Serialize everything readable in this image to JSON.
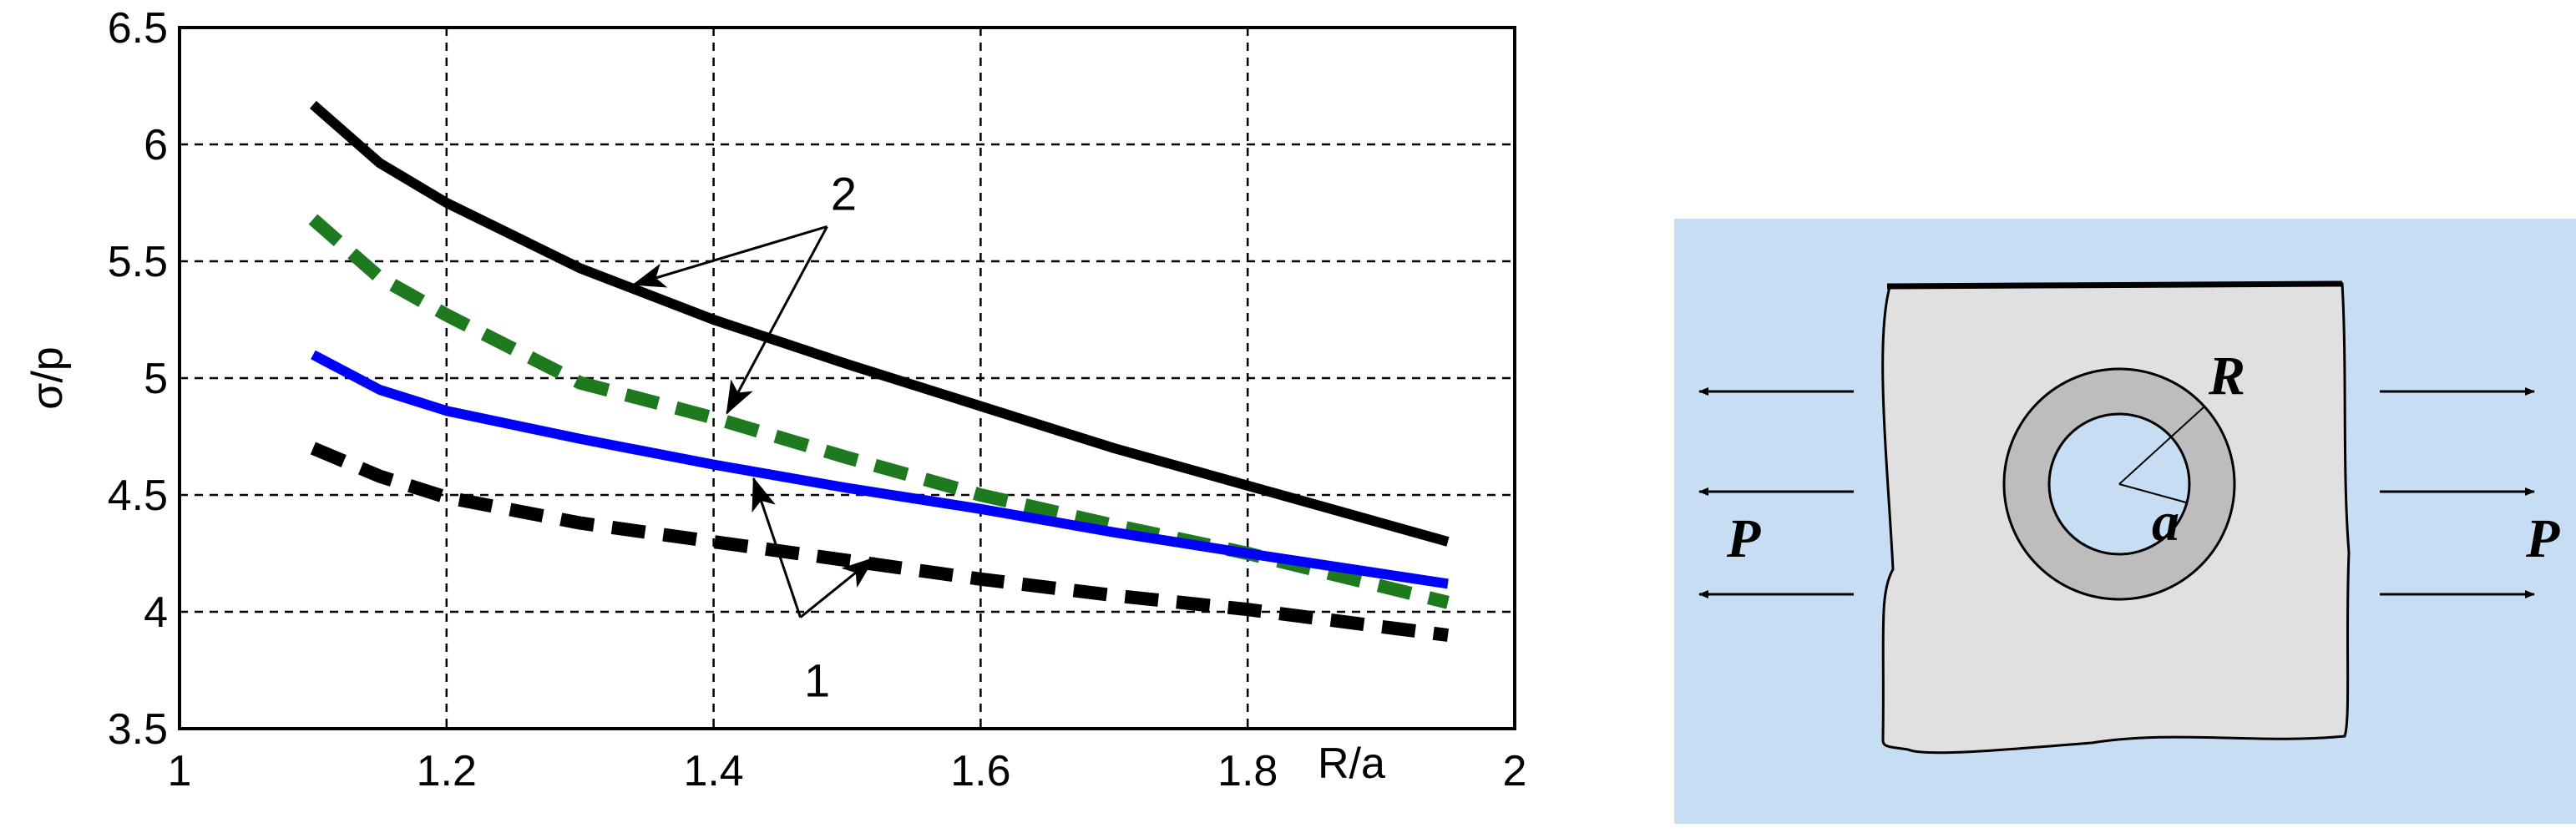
{
  "chart_data": {
    "type": "line",
    "title": "",
    "xlabel": "R/a",
    "ylabel": "σ/p",
    "xlim": [
      1,
      2
    ],
    "ylim": [
      3.5,
      6.5
    ],
    "x_ticks": [
      "1",
      "1.2",
      "1.4",
      "1.6",
      "1.8",
      "2"
    ],
    "y_ticks": [
      "3.5",
      "4",
      "4.5",
      "5",
      "5.5",
      "6",
      "6.5"
    ],
    "grid": true,
    "legend": "none",
    "series": [
      {
        "color": "#000000",
        "style": "solid",
        "x": [
          1.1,
          1.15,
          1.2,
          1.3,
          1.4,
          1.5,
          1.6,
          1.7,
          1.8,
          1.95
        ],
        "y": [
          6.17,
          5.92,
          5.75,
          5.47,
          5.25,
          5.06,
          4.88,
          4.7,
          4.54,
          4.3
        ]
      },
      {
        "color": "#1f7a1f",
        "style": "dashed",
        "x": [
          1.1,
          1.15,
          1.2,
          1.3,
          1.4,
          1.5,
          1.6,
          1.7,
          1.8,
          1.95
        ],
        "y": [
          5.68,
          5.43,
          5.27,
          4.98,
          4.83,
          4.66,
          4.5,
          4.37,
          4.25,
          4.04
        ]
      },
      {
        "color": "#0000ff",
        "style": "solid",
        "x": [
          1.1,
          1.15,
          1.2,
          1.3,
          1.4,
          1.5,
          1.6,
          1.7,
          1.8,
          1.95
        ],
        "y": [
          5.1,
          4.95,
          4.86,
          4.74,
          4.63,
          4.53,
          4.44,
          4.34,
          4.25,
          4.12
        ]
      },
      {
        "color": "#000000",
        "style": "dashed",
        "x": [
          1.1,
          1.15,
          1.2,
          1.3,
          1.4,
          1.5,
          1.6,
          1.7,
          1.8,
          1.95
        ],
        "y": [
          4.7,
          4.58,
          4.49,
          4.38,
          4.3,
          4.22,
          4.14,
          4.07,
          4.01,
          3.9
        ]
      }
    ],
    "annotations": [
      {
        "text": "2",
        "anchor": [
          1.485,
          5.72
        ],
        "targets": [
          [
            1.34,
            5.4
          ],
          [
            1.41,
            4.85
          ]
        ]
      },
      {
        "text": "1",
        "anchor": [
          1.465,
          3.78
        ],
        "targets": [
          [
            1.43,
            4.57
          ],
          [
            1.52,
            4.23
          ]
        ]
      }
    ]
  },
  "diagram": {
    "outer_label": "R",
    "inner_label": "a",
    "load_left": "P",
    "load_right": "P",
    "background_color": "#c6ddf3",
    "plate_color": "#e0e0e0",
    "ring_color": "#bdbdbd"
  }
}
